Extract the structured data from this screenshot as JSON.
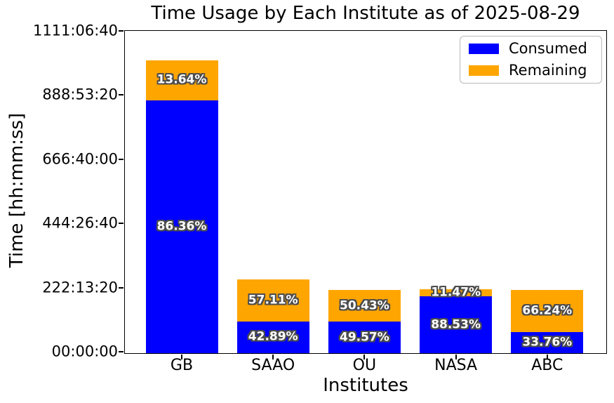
{
  "chart_data": {
    "type": "bar",
    "stacked": true,
    "title": "Time Usage by Each Institute as of 2025-08-29",
    "xlabel": "Institutes",
    "ylabel": "Time [hh:mm:ss]",
    "categories": [
      "GB",
      "SAAO",
      "OU",
      "NASA",
      "ABC"
    ],
    "totals_seconds_est": [
      3653000,
      920000,
      790000,
      798000,
      790000
    ],
    "series": [
      {
        "name": "Consumed",
        "color": "#0000ff",
        "pct": [
          86.36,
          42.89,
          49.57,
          88.53,
          33.76
        ],
        "labels": [
          "86.36%",
          "42.89%",
          "49.57%",
          "88.53%",
          "33.76%"
        ]
      },
      {
        "name": "Remaining",
        "color": "#ffa500",
        "pct": [
          13.64,
          57.11,
          50.43,
          11.47,
          66.24
        ],
        "labels": [
          "13.64%",
          "57.11%",
          "50.43%",
          "11.47%",
          "66.24%"
        ]
      }
    ],
    "ylim_seconds": [
      0,
      4000000
    ],
    "y_tick_seconds": [
      0,
      800000,
      1600000,
      2400000,
      3200000,
      4000000
    ],
    "y_tick_labels": [
      "00:00:00",
      "222:13:20",
      "444:26:40",
      "666:40:00",
      "888:53:20",
      "1111:06:40"
    ],
    "legend_position": "upper right",
    "grid": false
  }
}
